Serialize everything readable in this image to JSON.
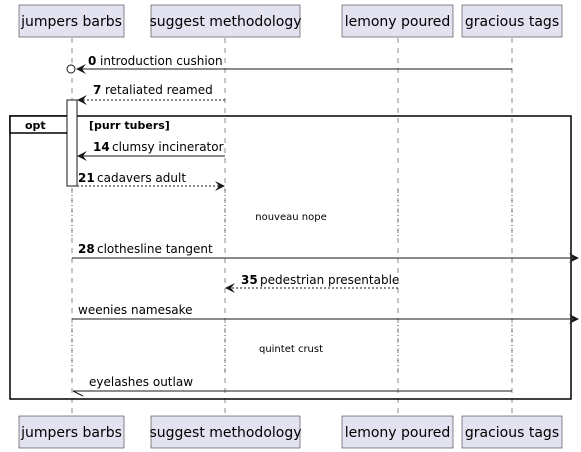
{
  "participants": [
    {
      "name": "jumpers barbs"
    },
    {
      "name": "suggest methodology"
    },
    {
      "name": "lemony poured"
    },
    {
      "name": "gracious tags"
    }
  ],
  "messages": [
    {
      "num": "0",
      "text": "introduction cushion"
    },
    {
      "num": "7",
      "text": "retaliated reamed"
    },
    {
      "num": "14",
      "text": "clumsy incinerator"
    },
    {
      "num": "21",
      "text": "cadavers adult"
    },
    {
      "num": "28",
      "text": "clothesline tangent"
    },
    {
      "num": "35",
      "text": "pedestrian presentable"
    },
    {
      "num": "",
      "text": "weenies namesake"
    },
    {
      "num": "",
      "text": "eyelashes outlaw"
    }
  ],
  "delays": [
    {
      "text": "nouveau nope"
    },
    {
      "text": "quintet crust"
    }
  ],
  "fragment": {
    "keyword": "opt",
    "guard": "[purr tubers]"
  }
}
